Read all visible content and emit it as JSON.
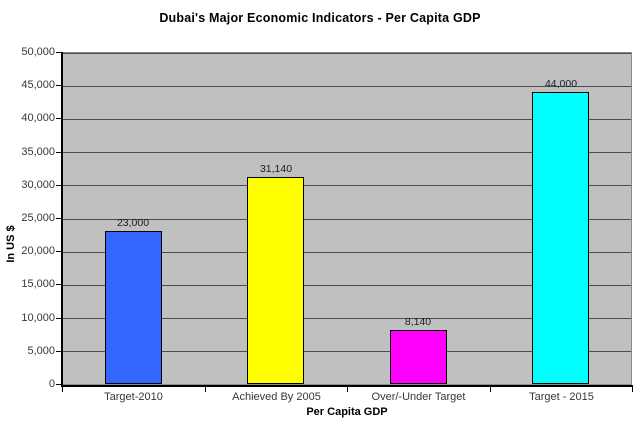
{
  "chart": {
    "title": "Dubai's Major Economic Indicators - Per Capita GDP",
    "xlabel": "Per Capita GDP",
    "ylabel": "In US $"
  },
  "chart_data": {
    "type": "bar",
    "title": "Dubai's Major Economic Indicators - Per Capita GDP",
    "xlabel": "Per Capita GDP",
    "ylabel": "In US $",
    "categories": [
      "Target-2010",
      "Achieved By 2005",
      "Over/-Under Target",
      "Target - 2015"
    ],
    "values": [
      23000,
      31140,
      8140,
      44000
    ],
    "value_labels": [
      "23,000",
      "31,140",
      "8,140",
      "44,000"
    ],
    "bar_colors": [
      "#3366ff",
      "#ffff00",
      "#ff00ff",
      "#00ffff"
    ],
    "ylim": [
      0,
      50000
    ],
    "ytick_step": 5000,
    "ytick_labels": [
      "0",
      "5,000",
      "10,000",
      "15,000",
      "20,000",
      "25,000",
      "30,000",
      "35,000",
      "40,000",
      "45,000",
      "50,000"
    ],
    "grid": true,
    "legend": "none",
    "plot_bg_color": "#c0c0c0",
    "gridline_color": "#4d4d4d",
    "outer_bg_color": "#ffffff"
  }
}
